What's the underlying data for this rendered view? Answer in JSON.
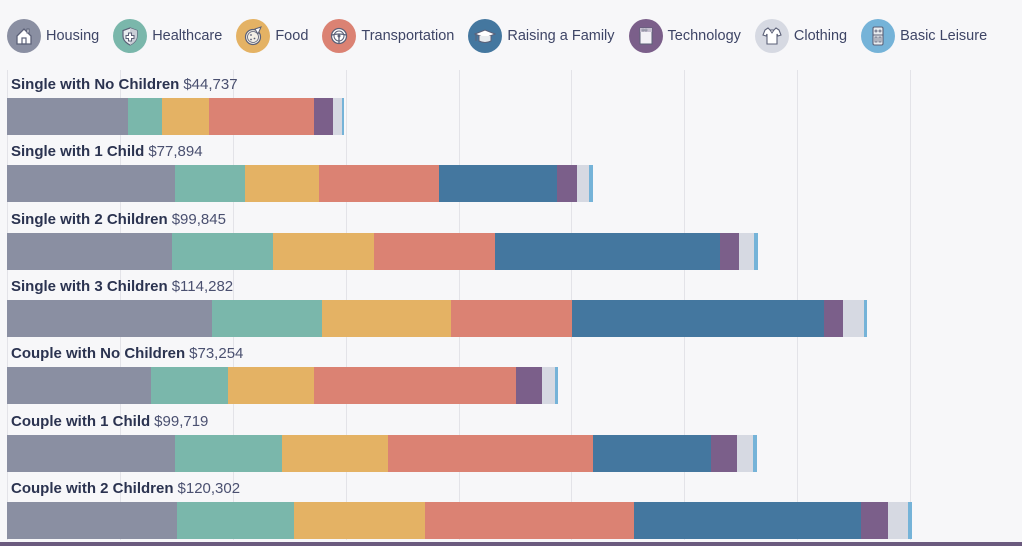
{
  "chart_data": {
    "type": "bar",
    "orientation": "horizontal",
    "stacked": true,
    "title": "",
    "xlabel": "",
    "ylabel": "",
    "xlim": [
      0,
      120000
    ],
    "grid": true,
    "grid_step": 15000,
    "legend_position": "top",
    "categories": [
      {
        "name": "Single with No Children",
        "total_label": "$44,737",
        "total": 44737
      },
      {
        "name": "Single with 1 Child",
        "total_label": "$77,894",
        "total": 77894
      },
      {
        "name": "Single with 2 Children",
        "total_label": "$99,845",
        "total": 99845
      },
      {
        "name": "Single with 3 Children",
        "total_label": "$114,282",
        "total": 114282
      },
      {
        "name": "Couple with No Children",
        "total_label": "$73,254",
        "total": 73254
      },
      {
        "name": "Couple with 1 Child",
        "total_label": "$99,719",
        "total": 99719
      },
      {
        "name": "Couple with 2 Children",
        "total_label": "$120,302",
        "total": 120302
      }
    ],
    "series": [
      {
        "name": "Housing",
        "color": "#8a8fa2",
        "icon": "house-icon",
        "values": [
          16100,
          22290,
          21910,
          27240,
          19140,
          22310,
          22570
        ]
      },
      {
        "name": "Healthcare",
        "color": "#7ab7ab",
        "icon": "shield-cross-icon",
        "values": [
          4530,
          9290,
          13410,
          14620,
          10240,
          14210,
          15540
        ]
      },
      {
        "name": "Food",
        "color": "#e4b264",
        "icon": "pizza-icon",
        "values": [
          6260,
          9820,
          13410,
          17140,
          11430,
          14080,
          17400
        ]
      },
      {
        "name": "Transportation",
        "color": "#db8273",
        "icon": "steering-wheel-icon",
        "values": [
          13850,
          16060,
          16070,
          16080,
          26860,
          27220,
          27760
        ]
      },
      {
        "name": "Raising a Family",
        "color": "#44779f",
        "icon": "graduation-cap-icon",
        "values": [
          0,
          15660,
          30010,
          33490,
          0,
          15800,
          30280
        ]
      },
      {
        "name": "Technology",
        "color": "#7b5f8a",
        "icon": "device-icon",
        "values": [
          2530,
          2650,
          2520,
          2520,
          3460,
          3450,
          3590
        ]
      },
      {
        "name": "Clothing",
        "color": "#d6d9e2",
        "icon": "shirt-icon",
        "values": [
          1200,
          1590,
          1990,
          2790,
          1730,
          2120,
          2660
        ]
      },
      {
        "name": "Basic Leisure",
        "color": "#75b3d8",
        "icon": "remote-icon",
        "values": [
          270,
          530,
          530,
          400,
          400,
          530,
          500
        ]
      }
    ]
  }
}
